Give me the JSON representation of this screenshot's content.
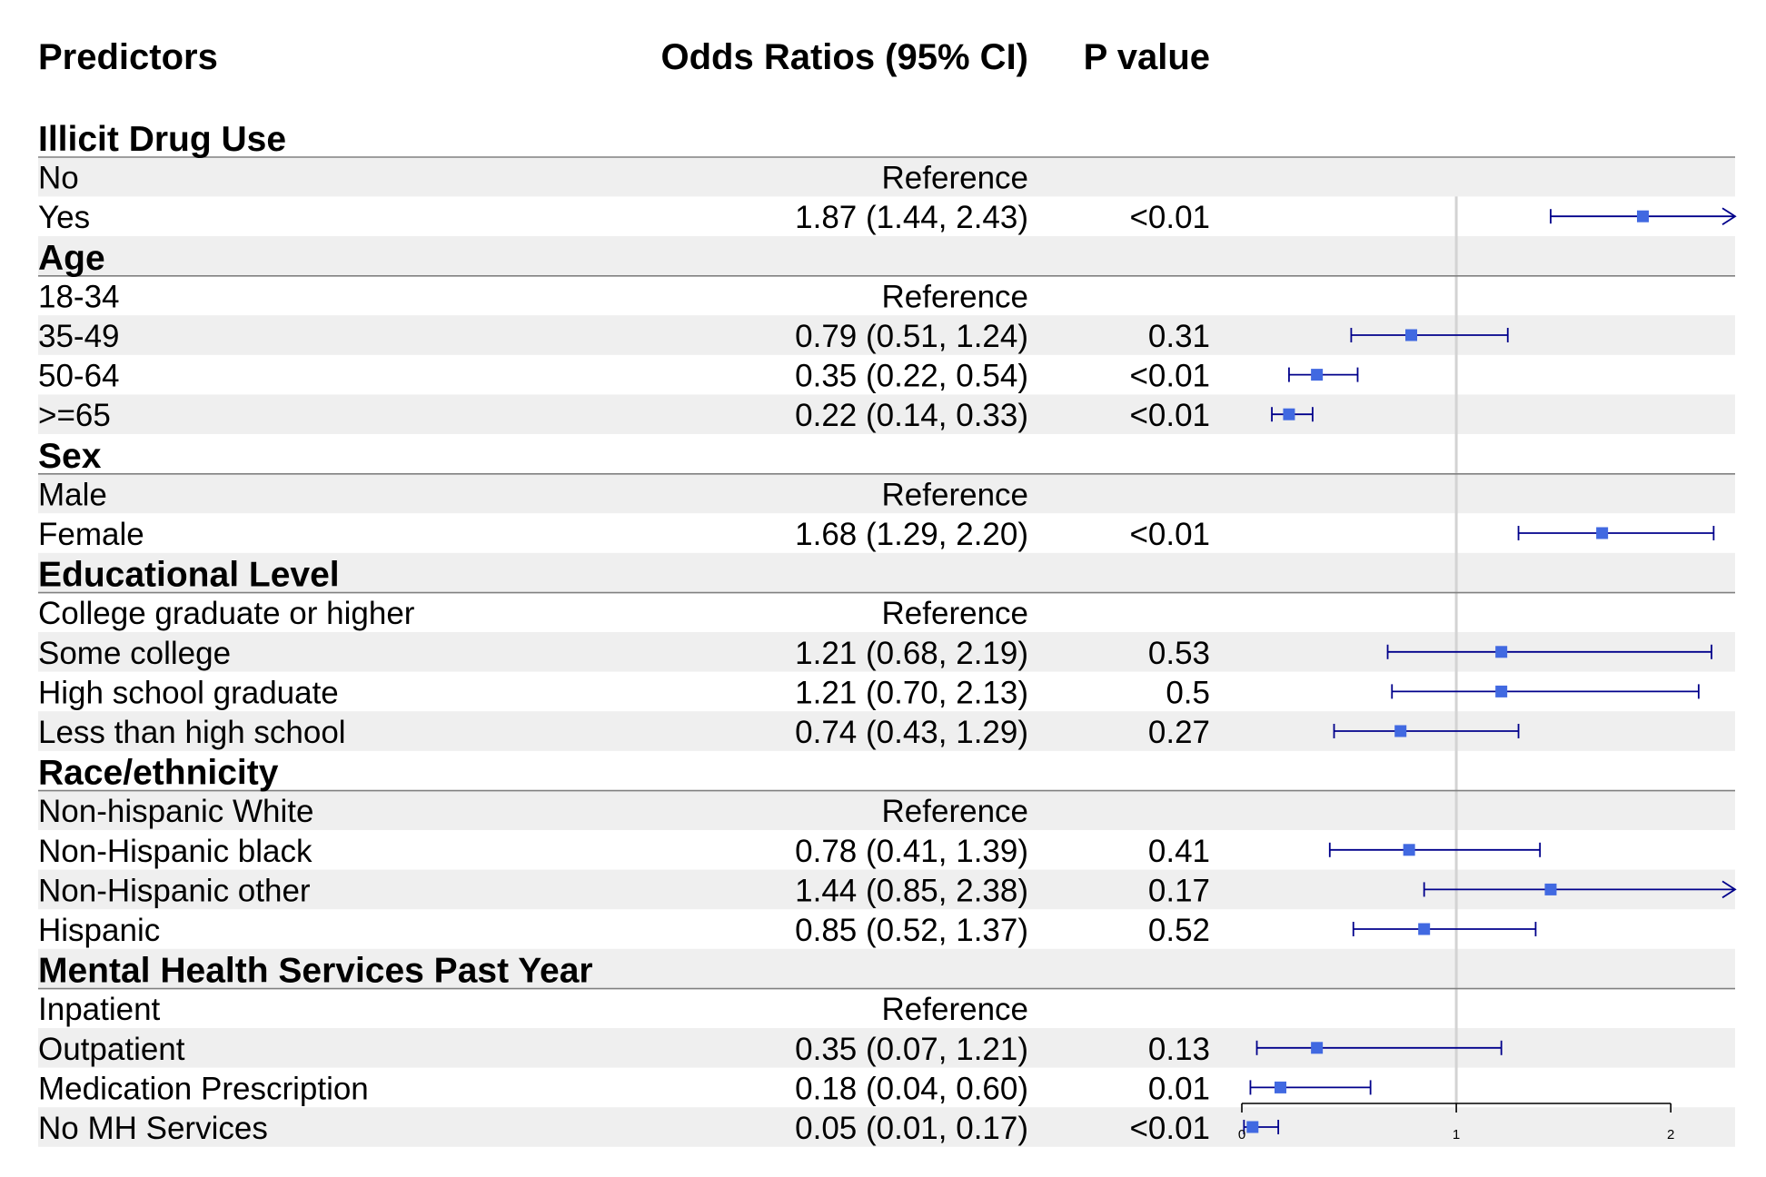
{
  "chart_data": {
    "type": "forest",
    "columns": {
      "predictors": "Predictors",
      "or_ci": "Odds Ratios (95% CI)",
      "p": "P value"
    },
    "x_axis": {
      "ticks": [
        0,
        1,
        2
      ],
      "xlim": [
        0,
        2.3
      ],
      "reference_line": 1
    },
    "colors": {
      "marker": "#4169e1",
      "ci_line": "#00008b",
      "stripe": "#efefef",
      "rule": "#808080",
      "ref_line": "#d3d3d3",
      "axis": "#000000"
    },
    "groups": [
      {
        "name": "Illicit Drug Use",
        "rows": [
          {
            "label": "No",
            "or_ci": "Reference",
            "p": "",
            "or": null,
            "lo": null,
            "hi": null
          },
          {
            "label": "Yes",
            "or_ci": "1.87 (1.44, 2.43)",
            "p": "<0.01",
            "or": 1.87,
            "lo": 1.44,
            "hi": 2.43
          }
        ]
      },
      {
        "name": "Age",
        "rows": [
          {
            "label": "18-34",
            "or_ci": "Reference",
            "p": "",
            "or": null,
            "lo": null,
            "hi": null
          },
          {
            "label": "35-49",
            "or_ci": "0.79 (0.51, 1.24)",
            "p": "0.31",
            "or": 0.79,
            "lo": 0.51,
            "hi": 1.24
          },
          {
            "label": "50-64",
            "or_ci": "0.35 (0.22, 0.54)",
            "p": "<0.01",
            "or": 0.35,
            "lo": 0.22,
            "hi": 0.54
          },
          {
            "label": ">=65",
            "or_ci": "0.22 (0.14, 0.33)",
            "p": "<0.01",
            "or": 0.22,
            "lo": 0.14,
            "hi": 0.33
          }
        ]
      },
      {
        "name": "Sex",
        "rows": [
          {
            "label": "Male",
            "or_ci": "Reference",
            "p": "",
            "or": null,
            "lo": null,
            "hi": null
          },
          {
            "label": "Female",
            "or_ci": "1.68 (1.29, 2.20)",
            "p": "<0.01",
            "or": 1.68,
            "lo": 1.29,
            "hi": 2.2
          }
        ]
      },
      {
        "name": "Educational Level",
        "rows": [
          {
            "label": "College graduate or higher",
            "or_ci": "Reference",
            "p": "",
            "or": null,
            "lo": null,
            "hi": null
          },
          {
            "label": "Some college",
            "or_ci": "1.21 (0.68, 2.19)",
            "p": "0.53",
            "or": 1.21,
            "lo": 0.68,
            "hi": 2.19
          },
          {
            "label": "High school graduate",
            "or_ci": "1.21 (0.70, 2.13)",
            "p": "0.5",
            "or": 1.21,
            "lo": 0.7,
            "hi": 2.13
          },
          {
            "label": "Less than high school",
            "or_ci": "0.74 (0.43, 1.29)",
            "p": "0.27",
            "or": 0.74,
            "lo": 0.43,
            "hi": 1.29
          }
        ]
      },
      {
        "name": "Race/ethnicity",
        "rows": [
          {
            "label": "Non-hispanic White",
            "or_ci": "Reference",
            "p": "",
            "or": null,
            "lo": null,
            "hi": null
          },
          {
            "label": "Non-Hispanic black",
            "or_ci": "0.78 (0.41, 1.39)",
            "p": "0.41",
            "or": 0.78,
            "lo": 0.41,
            "hi": 1.39
          },
          {
            "label": "Non-Hispanic other",
            "or_ci": "1.44 (0.85, 2.38)",
            "p": "0.17",
            "or": 1.44,
            "lo": 0.85,
            "hi": 2.38
          },
          {
            "label": "Hispanic",
            "or_ci": "0.85 (0.52, 1.37)",
            "p": "0.52",
            "or": 0.85,
            "lo": 0.52,
            "hi": 1.37
          }
        ]
      },
      {
        "name": "Mental Health Services Past Year",
        "rows": [
          {
            "label": "Inpatient",
            "or_ci": "Reference",
            "p": "",
            "or": null,
            "lo": null,
            "hi": null
          },
          {
            "label": "Outpatient",
            "or_ci": "0.35 (0.07, 1.21)",
            "p": "0.13",
            "or": 0.35,
            "lo": 0.07,
            "hi": 1.21
          },
          {
            "label": "Medication Prescription",
            "or_ci": "0.18 (0.04, 0.60)",
            "p": "0.01",
            "or": 0.18,
            "lo": 0.04,
            "hi": 0.6
          },
          {
            "label": "No MH Services",
            "or_ci": "0.05 (0.01, 0.17)",
            "p": "<0.01",
            "or": 0.05,
            "lo": 0.01,
            "hi": 0.17
          }
        ]
      }
    ]
  }
}
